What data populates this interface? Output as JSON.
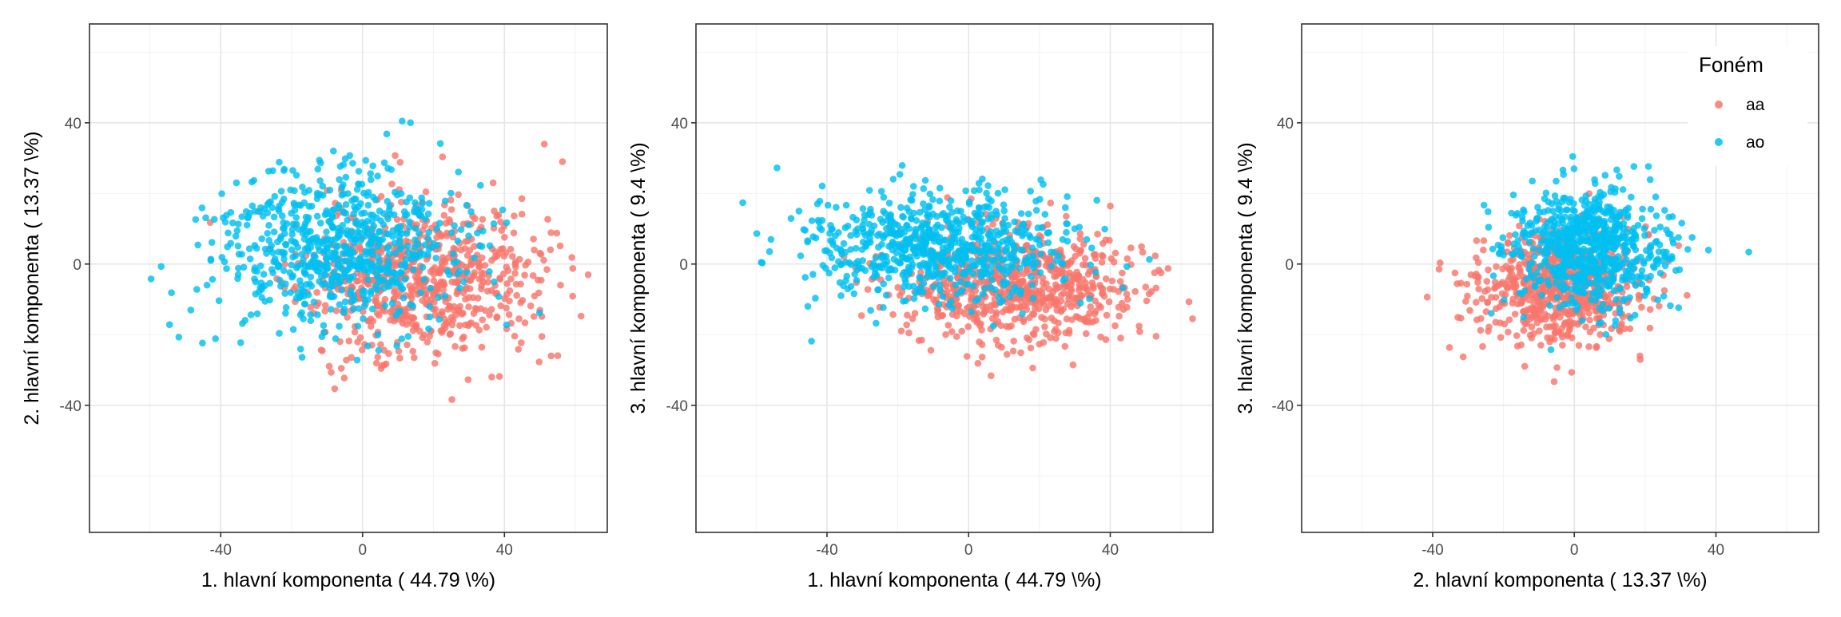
{
  "chart_data": [
    {
      "type": "scatter",
      "xlabel": "1. hlavní komponenta ( 44.79 \\%)",
      "ylabel": "2. hlavní komponenta ( 13.37 \\%)",
      "xlim": [
        -77,
        69
      ],
      "ylim": [
        -76,
        68
      ],
      "xticks": [
        -40,
        0,
        40
      ],
      "yticks": [
        -40,
        0,
        40
      ],
      "grid": true,
      "series": [
        {
          "name": "aa",
          "color": "#F8766D",
          "center": [
            16,
            -4
          ],
          "spread": [
            17,
            11
          ],
          "n": 700,
          "seed": 11
        },
        {
          "name": "ao",
          "color": "#00BFF0",
          "center": [
            -8,
            4
          ],
          "spread": [
            17,
            11
          ],
          "n": 700,
          "seed": 23
        }
      ]
    },
    {
      "type": "scatter",
      "xlabel": "1. hlavní komponenta ( 44.79 \\%)",
      "ylabel": "3. hlavní komponenta ( 9.4 \\%)",
      "xlim": [
        -77,
        69
      ],
      "ylim": [
        -76,
        68
      ],
      "xticks": [
        -40,
        0,
        40
      ],
      "yticks": [
        -40,
        0,
        40
      ],
      "grid": true,
      "series": [
        {
          "name": "aa",
          "color": "#F8766D",
          "center": [
            14,
            -6
          ],
          "spread": [
            17,
            8
          ],
          "n": 700,
          "seed": 37
        },
        {
          "name": "ao",
          "color": "#00BFF0",
          "center": [
            -8,
            5
          ],
          "spread": [
            18,
            8
          ],
          "n": 700,
          "seed": 41
        }
      ]
    },
    {
      "type": "scatter",
      "xlabel": "2. hlavní komponenta ( 13.37 \\%)",
      "ylabel": "3. hlavní komponenta ( 9.4 \\%)",
      "xlim": [
        -77,
        69
      ],
      "ylim": [
        -76,
        68
      ],
      "xticks": [
        -40,
        0,
        40
      ],
      "yticks": [
        -40,
        0,
        40
      ],
      "grid": true,
      "legend": {
        "title": "Foném",
        "position": "top-right",
        "entries": [
          "aa",
          "ao"
        ]
      },
      "series": [
        {
          "name": "aa",
          "color": "#F8766D",
          "center": [
            -4,
            -6
          ],
          "spread": [
            11,
            8
          ],
          "n": 700,
          "seed": 53
        },
        {
          "name": "ao",
          "color": "#00BFF0",
          "center": [
            4,
            5
          ],
          "spread": [
            11,
            8
          ],
          "n": 700,
          "seed": 67
        }
      ]
    }
  ]
}
